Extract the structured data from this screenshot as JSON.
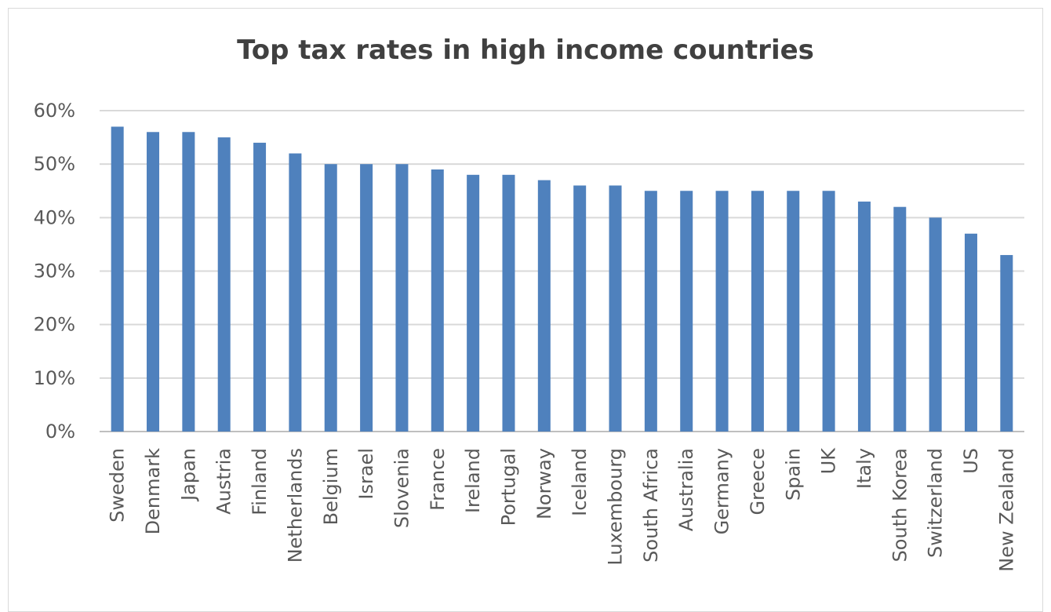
{
  "chart_data": {
    "type": "bar",
    "title": "Top tax rates in high income countries",
    "xlabel": "",
    "ylabel": "",
    "ylim": [
      0,
      60
    ],
    "y_ticks": [
      "0%",
      "10%",
      "20%",
      "30%",
      "40%",
      "50%",
      "60%"
    ],
    "categories": [
      "Sweden",
      "Denmark",
      "Japan",
      "Austria",
      "Finland",
      "Netherlands",
      "Belgium",
      "Israel",
      "Slovenia",
      "France",
      "Ireland",
      "Portugal",
      "Norway",
      "Iceland",
      "Luxembourg",
      "South Africa",
      "Australia",
      "Germany",
      "Greece",
      "Spain",
      "UK",
      "Italy",
      "South Korea",
      "Switzerland",
      "US",
      "New Zealand"
    ],
    "values": [
      57,
      56,
      56,
      55,
      54,
      52,
      50,
      50,
      50,
      49,
      48,
      48,
      47,
      46,
      46,
      45,
      45,
      45,
      45,
      45,
      45,
      43,
      42,
      40,
      37,
      33
    ],
    "unit": "%",
    "grid": true,
    "legend": "none",
    "colors": {
      "bar": "#4f81bd",
      "grid": "#d9d9d9",
      "axis": "#bfbfbf",
      "title": "#404040",
      "labels": "#595959"
    }
  }
}
